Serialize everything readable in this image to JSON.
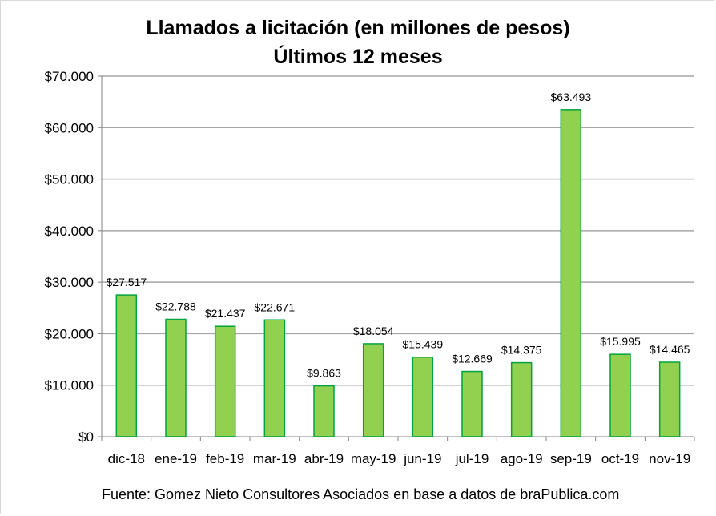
{
  "chart_data": {
    "type": "bar",
    "title": "Llamados a licitación (en millones de pesos)",
    "subtitle": "Últimos 12 meses",
    "xlabel": "",
    "ylabel": "",
    "categories": [
      "dic-18",
      "ene-19",
      "feb-19",
      "mar-19",
      "abr-19",
      "may-19",
      "jun-19",
      "jul-19",
      "ago-19",
      "sep-19",
      "oct-19",
      "nov-19"
    ],
    "values": [
      27517,
      22788,
      21437,
      22671,
      9863,
      18054,
      15439,
      12669,
      14375,
      63493,
      15995,
      14465
    ],
    "data_labels": [
      "$27.517",
      "$22.788",
      "$21.437",
      "$22.671",
      "$9.863",
      "$18.054",
      "$15.439",
      "$12.669",
      "$14.375",
      "$63.493",
      "$15.995",
      "$14.465"
    ],
    "ylim": [
      0,
      70000
    ],
    "y_ticks": [
      0,
      10000,
      20000,
      30000,
      40000,
      50000,
      60000,
      70000
    ],
    "y_tick_labels": [
      "$0",
      "$10.000",
      "$20.000",
      "$30.000",
      "$40.000",
      "$50.000",
      "$60.000",
      "$70.000"
    ],
    "grid": true,
    "legend": "none",
    "colors": {
      "bar_fill": "#92d050",
      "bar_stroke": "#00a33e",
      "grid": "#a6a6a6",
      "axis": "#808080",
      "text": "#000000"
    }
  },
  "footer": {
    "source": "Fuente: Gomez Nieto Consultores Asociados en base a datos de braPublica.com"
  }
}
